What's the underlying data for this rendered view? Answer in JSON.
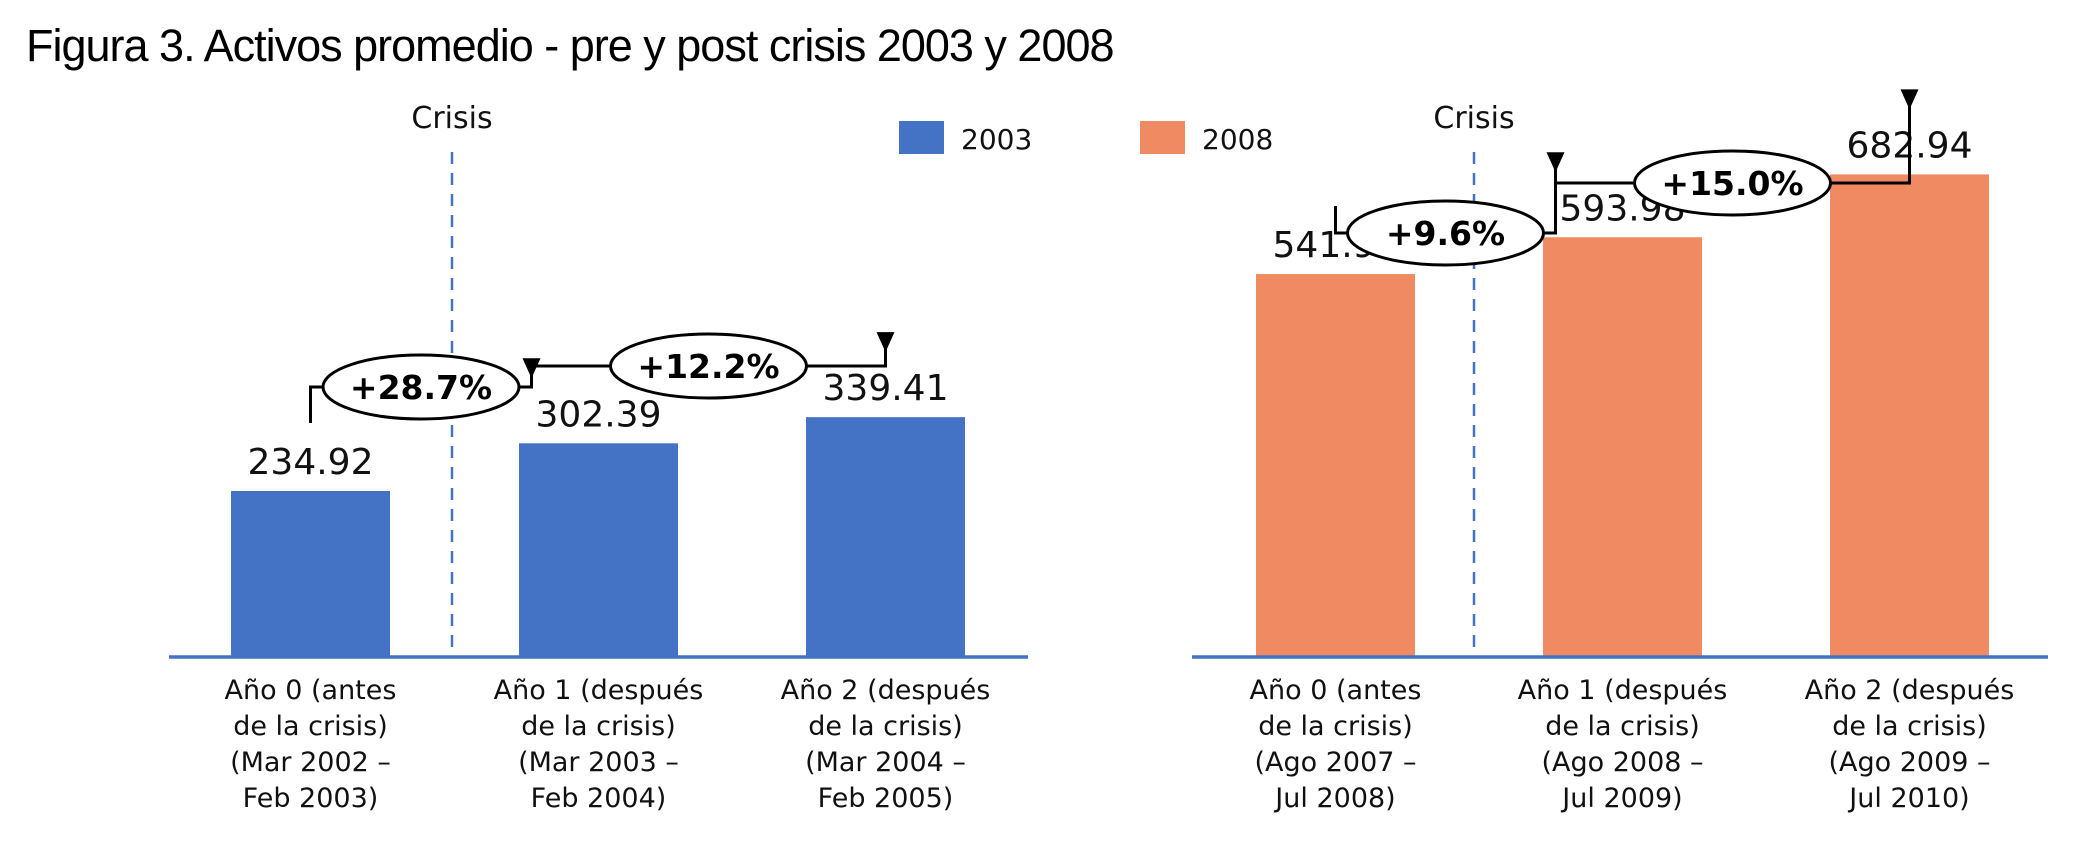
{
  "title": "Figura 3. Activos promedio - pre y post crisis 2003 y 2008",
  "legend": [
    {
      "label": "2003",
      "color": "#4472C4"
    },
    {
      "label": "2008",
      "color": "#F08A62"
    }
  ],
  "crisis_label": "Crisis",
  "chart_data": [
    {
      "type": "bar",
      "series_name": "2003",
      "color": "#4472C4",
      "categories": [
        [
          "Año 0 (antes",
          "de la crisis)",
          "(Mar 2002 –",
          "Feb 2003)"
        ],
        [
          "Año 1 (después",
          "de la crisis)",
          "(Mar 2003 –",
          "Feb 2004)"
        ],
        [
          "Año 2 (después",
          "de la crisis)",
          "(Mar 2004 –",
          "Feb 2005)"
        ]
      ],
      "values": [
        234.92,
        302.39,
        339.41
      ],
      "value_labels": [
        "234.92",
        "302.39",
        "339.41"
      ],
      "changes": [
        "+28.7%",
        "+12.2%"
      ],
      "crisis_marker": "between Año 0 and Año 1",
      "ylim": [
        0,
        750
      ],
      "grid": false,
      "y_axis_visible": false
    },
    {
      "type": "bar",
      "series_name": "2008",
      "color": "#F08A62",
      "categories": [
        [
          "Año 0 (antes",
          "de la crisis)",
          "(Ago 2007 –",
          "Jul 2008)"
        ],
        [
          "Año 1 (después",
          "de la crisis)",
          "(Ago 2008 –",
          "Jul 2009)"
        ],
        [
          "Año 2 (después",
          "de la crisis)",
          "(Ago 2009 –",
          "Jul 2010)"
        ]
      ],
      "values": [
        541.91,
        593.98,
        682.94
      ],
      "value_labels": [
        "541.91",
        "593.98",
        "682.94"
      ],
      "changes": [
        "+9.6%",
        "+15.0%"
      ],
      "crisis_marker": "between Año 0 and Año 1",
      "ylim": [
        0,
        750
      ],
      "grid": false,
      "y_axis_visible": false
    }
  ]
}
